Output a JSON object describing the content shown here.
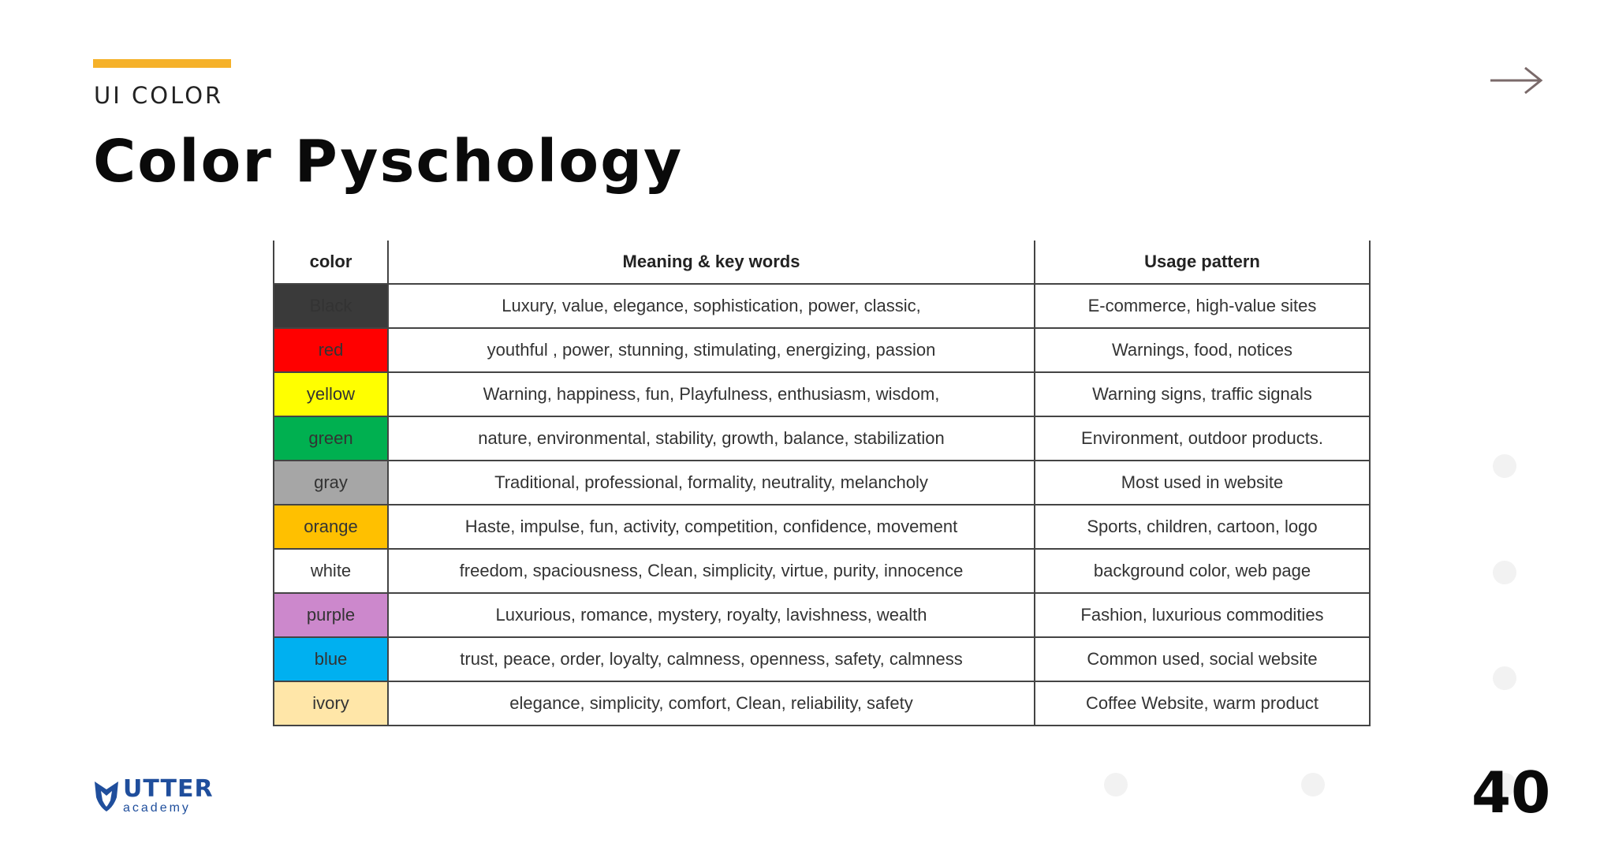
{
  "header": {
    "eyebrow": "UI COLOR",
    "title": "Color Pyschology",
    "accent_color": "#f5b129",
    "next_icon": "arrow-right-icon"
  },
  "table": {
    "headers": [
      "color",
      "Meaning & key words",
      "Usage pattern"
    ],
    "rows": [
      {
        "color": "Black",
        "swatch": "#3a3a3a",
        "meaning": "Luxury, value, elegance, sophistication, power, classic,",
        "usage": "E-commerce, high-value sites"
      },
      {
        "color": "red",
        "swatch": "#ff0000",
        "meaning": "youthful , power, stunning, stimulating, energizing, passion",
        "usage": "Warnings, food, notices"
      },
      {
        "color": "yellow",
        "swatch": "#ffff00",
        "meaning": "Warning, happiness, fun, Playfulness, enthusiasm, wisdom,",
        "usage": "Warning signs, traffic signals"
      },
      {
        "color": "green",
        "swatch": "#00b050",
        "meaning": "nature, environmental, stability, growth, balance, stabilization",
        "usage": "Environment, outdoor products."
      },
      {
        "color": "gray",
        "swatch": "#a6a6a6",
        "meaning": "Traditional, professional, formality, neutrality, melancholy",
        "usage": "Most used in website"
      },
      {
        "color": "orange",
        "swatch": "#ffc000",
        "meaning": "Haste, impulse, fun, activity, competition, confidence, movement",
        "usage": "Sports, children, cartoon, logo"
      },
      {
        "color": "white",
        "swatch": "#ffffff",
        "meaning": "freedom, spaciousness, Clean, simplicity, virtue, purity, innocence",
        "usage": "background color, web page"
      },
      {
        "color": "purple",
        "swatch": "#cc88cc",
        "meaning": "Luxurious, romance, mystery, royalty, lavishness, wealth",
        "usage": "Fashion, luxurious commodities"
      },
      {
        "color": "blue",
        "swatch": "#00b0f0",
        "meaning": "trust, peace, order, loyalty, calmness, openness, safety, calmness",
        "usage": "Common used, social website"
      },
      {
        "color": "ivory",
        "swatch": "#ffe6a8",
        "meaning": "elegance, simplicity, comfort, Clean, reliability, safety",
        "usage": "Coffee Website, warm product"
      }
    ]
  },
  "footer": {
    "brand_name": "UTTER",
    "brand_sub": "academy",
    "brand_color": "#1f4e9c",
    "page_number": "40"
  }
}
